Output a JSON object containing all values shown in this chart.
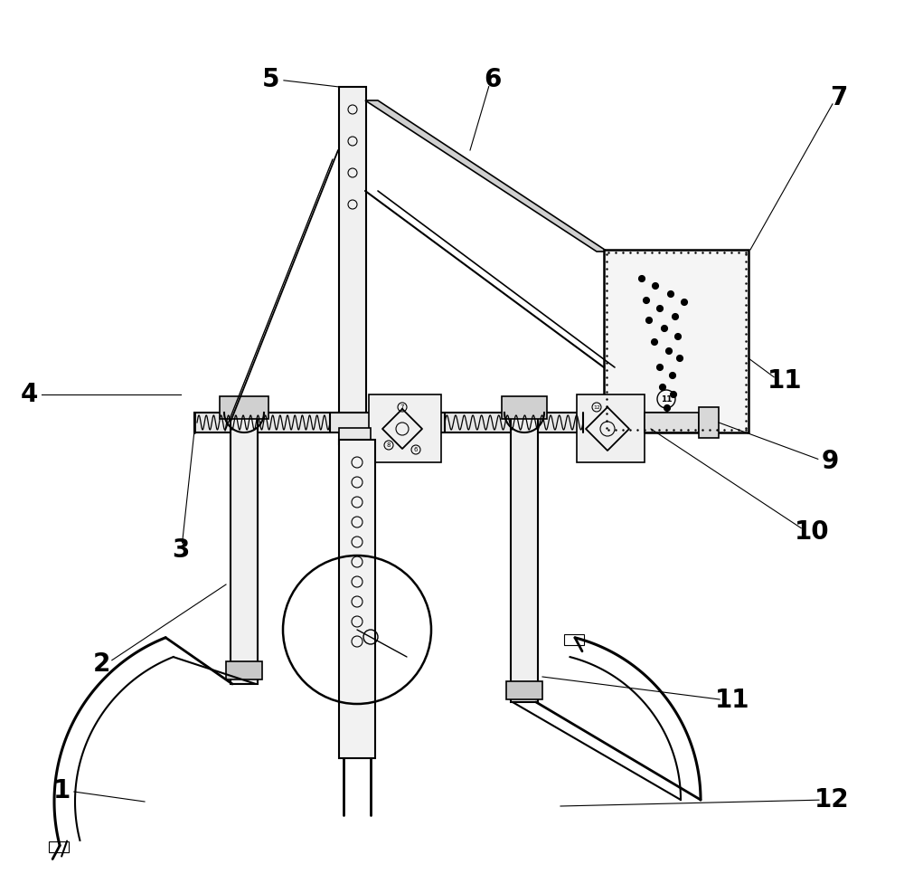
{
  "bg_color": "#ffffff",
  "line_color": "#000000",
  "fig_width": 10.0,
  "fig_height": 9.66
}
